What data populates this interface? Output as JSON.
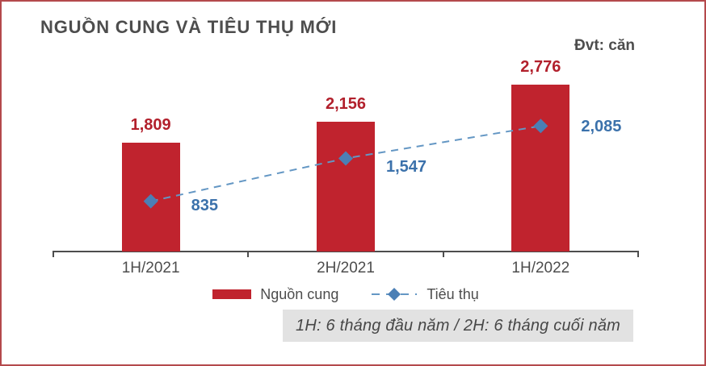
{
  "header": {
    "title": "NGUỒN CUNG VÀ TIÊU THỤ MỚI",
    "unit_label": "Đvt: căn"
  },
  "legend": {
    "supply": "Nguồn cung",
    "consumption": "Tiêu thụ"
  },
  "footnote": "1H: 6 tháng đầu năm / 2H: 6 tháng cuối năm",
  "colors": {
    "bar": "#c0232e",
    "bar_value_label": "#b2202c",
    "line": "#6497c4",
    "marker": "#4b7fb5",
    "line_value_label": "#3b71ab",
    "text": "#4d4d4d",
    "axis": "#4d4d4d",
    "frame_border": "#b4494c",
    "note_background": "#e2e2e2"
  },
  "chart_data": {
    "type": "bar",
    "subtype": "vertical bars with dashed diamond-marker line overlay",
    "title": "NGUỒN CUNG VÀ TIÊU THỤ MỚI",
    "unit": "Đvt: căn",
    "categories": [
      "1H/2021",
      "2H/2021",
      "1H/2022"
    ],
    "series": [
      {
        "name": "Nguồn cung",
        "type": "bar",
        "values": [
          1809,
          2156,
          2776
        ],
        "value_labels": [
          "1,809",
          "2,156",
          "2,776"
        ],
        "color": "#c0232e"
      },
      {
        "name": "Tiêu thụ",
        "type": "line",
        "line_style": "dashed",
        "marker": "diamond",
        "values": [
          835,
          1547,
          2085
        ],
        "value_labels": [
          "835",
          "1,547",
          "2,085"
        ],
        "color": "#4b7fb5"
      }
    ],
    "xlabel": "",
    "ylabel": "",
    "ylim": [
      0,
      3100
    ],
    "grid": false,
    "y_axis_shown": false,
    "legend_position": "bottom"
  }
}
